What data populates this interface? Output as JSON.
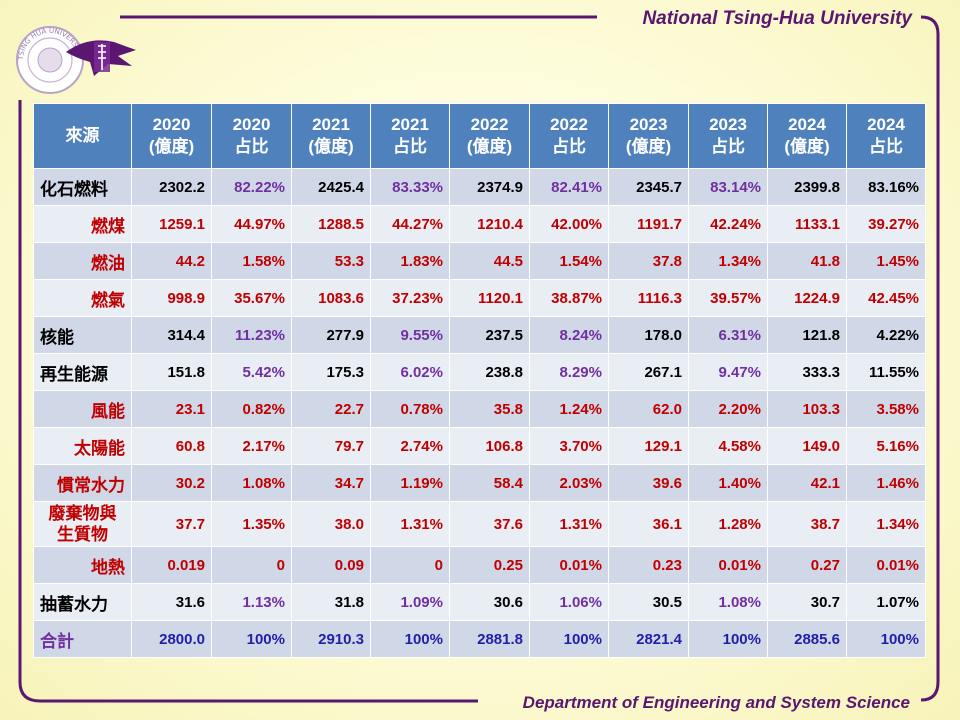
{
  "header": {
    "title": "National Tsing-Hua University"
  },
  "footer": {
    "text": "Department of Engineering and System Science"
  },
  "logo": {
    "icon": "nthu-seal-logo",
    "seal_text": "TSING HUA UNIVERSITY"
  },
  "colors": {
    "accent": "#5a1670",
    "header_fill": "#4f81bd",
    "band_dark": "#d0d8e8",
    "band_light": "#e9edf4",
    "red": "#c00000",
    "purple": "#7030a0",
    "blue": "#1f1fa8"
  },
  "table": {
    "headers": [
      "來源",
      "2020\n(億度)",
      "2020\n占比",
      "2021\n(億度)",
      "2021\n占比",
      "2022\n(億度)",
      "2022\n占比",
      "2023\n(億度)",
      "2023\n占比",
      "2024\n(億度)",
      "2024\n占比"
    ],
    "rows": [
      {
        "label": "化石燃料",
        "indent": false,
        "color": "black",
        "pct_color": "purple",
        "last_pct_color": "black",
        "cells": [
          "2302.2",
          "82.22%",
          "2425.4",
          "83.33%",
          "2374.9",
          "82.41%",
          "2345.7",
          "83.14%",
          "2399.8",
          "83.16%"
        ]
      },
      {
        "label": "燃煤",
        "indent": true,
        "color": "red",
        "pct_color": "red",
        "last_pct_color": "red",
        "cells": [
          "1259.1",
          "44.97%",
          "1288.5",
          "44.27%",
          "1210.4",
          "42.00%",
          "1191.7",
          "42.24%",
          "1133.1",
          "39.27%"
        ]
      },
      {
        "label": "燃油",
        "indent": true,
        "color": "red",
        "pct_color": "red",
        "last_pct_color": "red",
        "cells": [
          "44.2",
          "1.58%",
          "53.3",
          "1.83%",
          "44.5",
          "1.54%",
          "37.8",
          "1.34%",
          "41.8",
          "1.45%"
        ]
      },
      {
        "label": "燃氣",
        "indent": true,
        "color": "red",
        "pct_color": "red",
        "last_pct_color": "red",
        "cells": [
          "998.9",
          "35.67%",
          "1083.6",
          "37.23%",
          "1120.1",
          "38.87%",
          "1116.3",
          "39.57%",
          "1224.9",
          "42.45%"
        ]
      },
      {
        "label": "核能",
        "indent": false,
        "color": "black",
        "pct_color": "purple",
        "last_pct_color": "black",
        "cells": [
          "314.4",
          "11.23%",
          "277.9",
          "9.55%",
          "237.5",
          "8.24%",
          "178.0",
          "6.31%",
          "121.8",
          "4.22%"
        ]
      },
      {
        "label": "再生能源",
        "indent": false,
        "color": "black",
        "pct_color": "purple",
        "last_pct_color": "black",
        "cells": [
          "151.8",
          "5.42%",
          "175.3",
          "6.02%",
          "238.8",
          "8.29%",
          "267.1",
          "9.47%",
          "333.3",
          "11.55%"
        ]
      },
      {
        "label": "風能",
        "indent": true,
        "color": "red",
        "pct_color": "red",
        "last_pct_color": "red",
        "cells": [
          "23.1",
          "0.82%",
          "22.7",
          "0.78%",
          "35.8",
          "1.24%",
          "62.0",
          "2.20%",
          "103.3",
          "3.58%"
        ]
      },
      {
        "label": "太陽能",
        "indent": true,
        "color": "red",
        "pct_color": "red",
        "last_pct_color": "red",
        "cells": [
          "60.8",
          "2.17%",
          "79.7",
          "2.74%",
          "106.8",
          "3.70%",
          "129.1",
          "4.58%",
          "149.0",
          "5.16%"
        ]
      },
      {
        "label": "慣常水力",
        "indent": true,
        "color": "red",
        "pct_color": "red",
        "last_pct_color": "red",
        "cells": [
          "30.2",
          "1.08%",
          "34.7",
          "1.19%",
          "58.4",
          "2.03%",
          "39.6",
          "1.40%",
          "42.1",
          "1.46%"
        ]
      },
      {
        "label": "廢棄物與\n生質物",
        "indent": true,
        "two_line": true,
        "color": "red",
        "pct_color": "red",
        "last_pct_color": "red",
        "cells": [
          "37.7",
          "1.35%",
          "38.0",
          "1.31%",
          "37.6",
          "1.31%",
          "36.1",
          "1.28%",
          "38.7",
          "1.34%"
        ]
      },
      {
        "label": "地熱",
        "indent": true,
        "color": "red",
        "pct_color": "red",
        "last_pct_color": "red",
        "cells": [
          "0.019",
          "0",
          "0.09",
          "0",
          "0.25",
          "0.01%",
          "0.23",
          "0.01%",
          "0.27",
          "0.01%"
        ]
      },
      {
        "label": "抽蓄水力",
        "indent": false,
        "color": "black",
        "pct_color": "purple",
        "last_pct_color": "black",
        "cells": [
          "31.6",
          "1.13%",
          "31.8",
          "1.09%",
          "30.6",
          "1.06%",
          "30.5",
          "1.08%",
          "30.7",
          "1.07%"
        ]
      },
      {
        "label": "合計",
        "indent": false,
        "color": "blue",
        "pct_color": "blue",
        "last_pct_color": "blue",
        "label_color": "purple",
        "cells": [
          "2800.0",
          "100%",
          "2910.3",
          "100%",
          "2881.8",
          "100%",
          "2821.4",
          "100%",
          "2885.6",
          "100%"
        ]
      }
    ]
  }
}
